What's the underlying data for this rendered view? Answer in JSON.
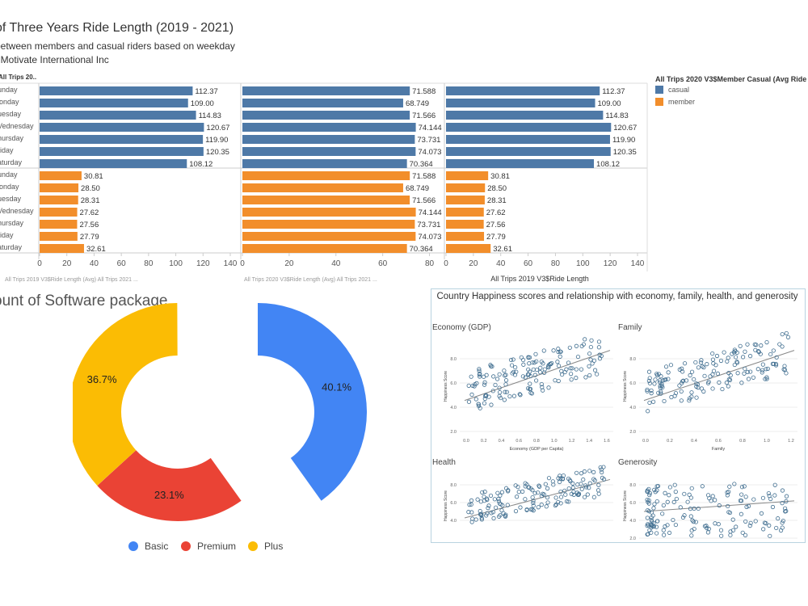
{
  "ride": {
    "title": "of Three Years  Ride Length (2019 - 2021)",
    "subtitle": "between members and casual riders  based on weekday",
    "source": ": Motivate International Inc",
    "row_header": "All Trips 20..",
    "legend_title": "All Trips 2020 V3$Member Casual (Avg Ride L",
    "legend_items": [
      {
        "label": "casual",
        "color": "#4e79a7"
      },
      {
        "label": "member",
        "color": "#f28e2b"
      }
    ],
    "days": [
      "unday",
      "londay",
      "uesday",
      "Vednesday",
      "hursday",
      "riday",
      "aturday"
    ],
    "bottom_label": "All Trips 2019 V3$Ride Length",
    "bottom_fragment_left": "All Trips 2019 V3$Ride Length (Avg) All Trips 2021 ...",
    "bottom_fragment_mid": "All Trips 2020 V3$Ride Length (Avg) All Trips 2021 ...",
    "colors": {
      "casual": "#4e79a7",
      "member": "#f28e2b"
    }
  },
  "chart_data": [
    {
      "type": "bar",
      "orientation": "horizontal",
      "panel": 1,
      "categories": [
        "unday",
        "londay",
        "uesday",
        "Vednesday",
        "hursday",
        "riday",
        "aturday"
      ],
      "series": [
        {
          "name": "casual",
          "values": [
            112.37,
            109.0,
            114.83,
            120.67,
            119.9,
            120.35,
            108.12
          ],
          "labels": [
            "112.37",
            "109.00",
            "114.83",
            "120.67",
            "119.90",
            "120.35",
            "108.12"
          ]
        },
        {
          "name": "member",
          "values": [
            30.81,
            28.5,
            28.31,
            27.62,
            27.56,
            27.79,
            32.61
          ],
          "labels": [
            "30.81",
            "28.50",
            "28.31",
            "27.62",
            "27.56",
            "27.79",
            "32.61"
          ]
        }
      ],
      "xlim": [
        0,
        140
      ],
      "ticks": [
        0,
        20,
        40,
        60,
        80,
        100,
        120,
        140
      ]
    },
    {
      "type": "bar",
      "orientation": "horizontal",
      "panel": 2,
      "categories": [
        "unday",
        "londay",
        "uesday",
        "Vednesday",
        "hursday",
        "riday",
        "aturday"
      ],
      "series": [
        {
          "name": "casual",
          "values": [
            71.588,
            68.749,
            71.566,
            74.144,
            73.731,
            74.073,
            70.364
          ],
          "labels": [
            "71.588",
            "68.749",
            "71.566",
            "74.144",
            "73.731",
            "74.073",
            "70.364"
          ]
        },
        {
          "name": "member",
          "values": [
            71.588,
            68.749,
            71.566,
            74.144,
            73.731,
            74.073,
            70.364
          ],
          "labels": [
            "71.588",
            "68.749",
            "71.566",
            "74.144",
            "73.731",
            "74.073",
            "70.364"
          ]
        }
      ],
      "xlim": [
        0,
        85
      ],
      "ticks": [
        0,
        20,
        40,
        60,
        80
      ]
    },
    {
      "type": "bar",
      "orientation": "horizontal",
      "panel": 3,
      "categories": [
        "unday",
        "londay",
        "uesday",
        "Vednesday",
        "hursday",
        "riday",
        "aturday"
      ],
      "series": [
        {
          "name": "casual",
          "values": [
            112.37,
            109.0,
            114.83,
            120.67,
            119.9,
            120.35,
            108.12
          ],
          "labels": [
            "112.37",
            "109.00",
            "114.83",
            "120.67",
            "119.90",
            "120.35",
            "108.12"
          ]
        },
        {
          "name": "member",
          "values": [
            30.81,
            28.5,
            28.31,
            27.62,
            27.56,
            27.79,
            32.61
          ],
          "labels": [
            "30.81",
            "28.50",
            "28.31",
            "27.62",
            "27.56",
            "27.79",
            "32.61"
          ]
        }
      ],
      "xlim": [
        0,
        140
      ],
      "ticks": [
        0,
        20,
        40,
        60,
        80,
        100,
        120,
        140
      ],
      "xlabel": "All Trips 2019 V3$Ride Length"
    },
    {
      "type": "pie",
      "donut": true,
      "title": "ount of Software package",
      "categories": [
        "Basic",
        "Premium",
        "Plus"
      ],
      "values": [
        40.1,
        23.1,
        36.7
      ],
      "labels": [
        "40.1%",
        "23.1%",
        "36.7%"
      ],
      "colors": [
        "#4285f4",
        "#ea4335",
        "#fbbc04"
      ],
      "legend": "bottom"
    },
    {
      "type": "scatter",
      "title": "Country Happiness scores and relationship with economy, family, health, and generosity",
      "panels": [
        {
          "name": "Economy (GDP)",
          "xlabel": "Economy (GDP per Capita)",
          "ylabel": "Happiness Score",
          "xticks": [
            "0.0",
            "0.2",
            "0.4",
            "0.6",
            "0.8",
            "1.0",
            "1.2",
            "1.4",
            "1.6"
          ],
          "yticks": [
            "2.0",
            "4.0",
            "6.0",
            "8.0"
          ],
          "trend": "positive"
        },
        {
          "name": "Family",
          "xlabel": "Family",
          "ylabel": "Happiness Score",
          "xticks": [
            "0.0",
            "0.2",
            "0.4",
            "0.6",
            "0.8",
            "1.0",
            "1.2"
          ],
          "yticks": [
            "2.0",
            "4.0",
            "6.0",
            "8.0"
          ],
          "trend": "positive"
        },
        {
          "name": "Health",
          "xlabel": "",
          "ylabel": "Happiness Score",
          "xticks": [],
          "yticks": [
            "4.0",
            "6.0",
            "8.0"
          ],
          "trend": "positive"
        },
        {
          "name": "Generosity",
          "xlabel": "",
          "ylabel": "Happiness Score",
          "xticks": [],
          "yticks": [
            "2.0",
            "4.0",
            "6.0",
            "8.0"
          ],
          "trend": "weak positive"
        }
      ]
    }
  ]
}
